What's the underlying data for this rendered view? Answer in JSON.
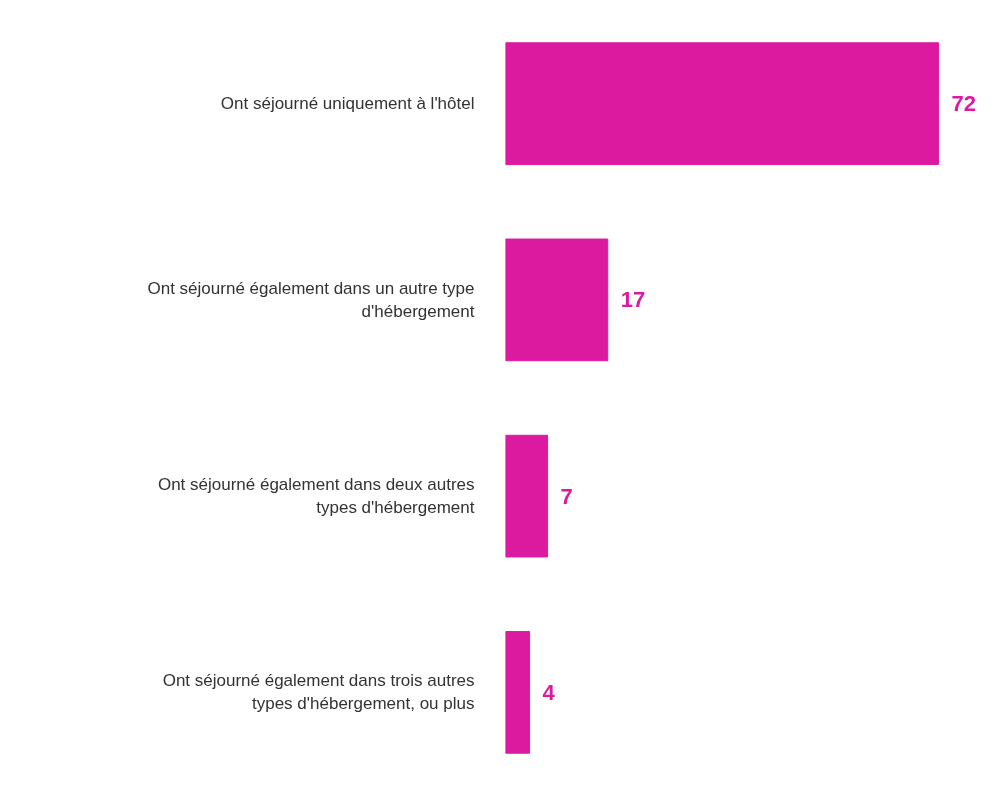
{
  "chart_data": {
    "type": "bar",
    "orientation": "horizontal",
    "categories": [
      "Ont séjourné uniquement à l'hôtel",
      "Ont séjourné également dans un autre type d'hébergement",
      "Ont séjourné également dans deux autres types d'hébergement",
      "Ont séjourné également dans trois autres types d'hébergement, ou plus"
    ],
    "values": [
      72,
      17,
      7,
      4
    ],
    "color": "#dc1aa0",
    "data_labels": true,
    "grid": false
  }
}
